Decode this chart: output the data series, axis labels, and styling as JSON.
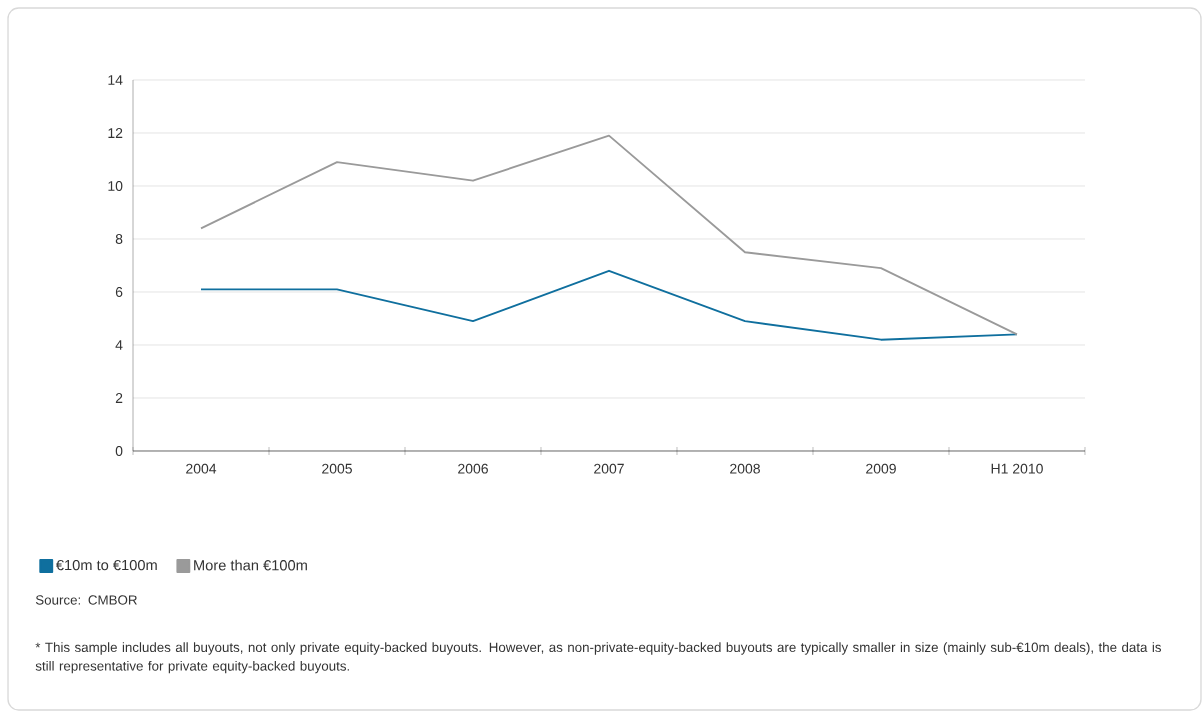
{
  "chart_data": {
    "type": "line",
    "categories": [
      "2004",
      "2005",
      "2006",
      "2007",
      "2008",
      "2009",
      "H1 2010"
    ],
    "series": [
      {
        "name": "€10m to €100m",
        "color": "#0f6f9e",
        "values": [
          6.1,
          6.1,
          4.9,
          6.8,
          4.9,
          4.2,
          4.4
        ]
      },
      {
        "name": "More than €100m",
        "color": "#9a9a9a",
        "values": [
          8.4,
          10.9,
          10.2,
          11.9,
          7.5,
          6.9,
          4.4
        ]
      }
    ],
    "ylim": [
      0,
      14
    ],
    "yticks": [
      0,
      2,
      4,
      6,
      8,
      10,
      12,
      14
    ],
    "grid": "y",
    "legend": "bottom",
    "marker": "none",
    "line_style": "solid",
    "annotations": [
      "Source: CMBOR",
      "* This sample includes all buyouts, not only private equity-backed buyouts. However, as non-private-equity-backed buyouts are typically smaller in size (mainly sub-€10m deals), the data is still representative for private equity-backed buyouts."
    ]
  }
}
